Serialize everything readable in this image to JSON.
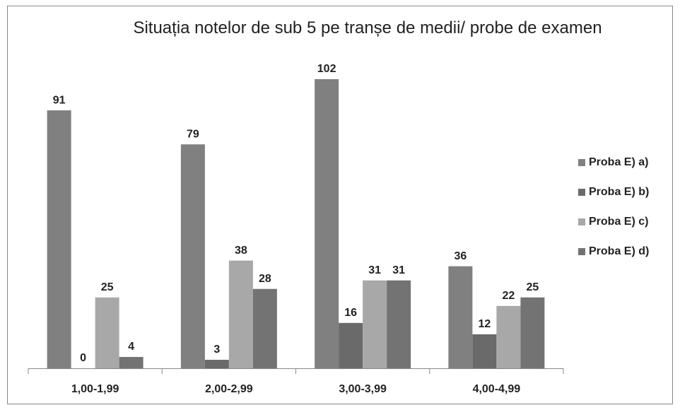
{
  "chart_data": {
    "type": "bar",
    "title": "Situația notelor de sub 5 pe tranșe de medii/ probe de examen",
    "categories": [
      "1,00-1,99",
      "2,00-2,99",
      "3,00-3,99",
      "4,00-4,99"
    ],
    "series": [
      {
        "name": "Proba E) a)",
        "color": "#808080",
        "values": [
          91,
          79,
          102,
          36
        ]
      },
      {
        "name": "Proba E) b)",
        "color": "#6a6a6a",
        "values": [
          0,
          3,
          16,
          12
        ]
      },
      {
        "name": "Proba E) c)",
        "color": "#a8a8a8",
        "values": [
          25,
          38,
          31,
          22
        ]
      },
      {
        "name": "Proba E) d)",
        "color": "#737373",
        "values": [
          4,
          28,
          31,
          25
        ]
      }
    ],
    "legend": "right"
  }
}
